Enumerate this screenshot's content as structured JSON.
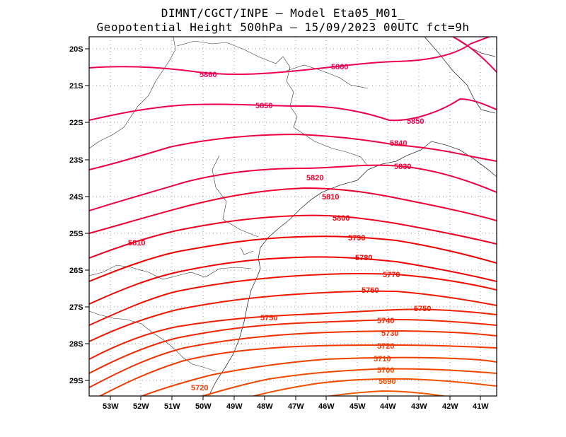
{
  "title": {
    "line1": "DIMNT/CGCT/INPE –  Model Eta05_M01_",
    "line2": "Geopotential Height 500hPa –  15/09/2023 00UTC fct=9h"
  },
  "lat_ticks": [
    "20S",
    "21S",
    "22S",
    "23S",
    "24S",
    "25S",
    "26S",
    "27S",
    "28S",
    "29S"
  ],
  "lon_ticks": [
    "53W",
    "52W",
    "51W",
    "50W",
    "49W",
    "48W",
    "47W",
    "46W",
    "45W",
    "44W",
    "43W",
    "42W",
    "41W"
  ],
  "contour_labels": [
    {
      "text": "5860",
      "color": "#ee0055"
    },
    {
      "text": "5860",
      "color": "#ee0055"
    },
    {
      "text": "5850",
      "color": "#ee0050"
    },
    {
      "text": "5850",
      "color": "#ee0050"
    },
    {
      "text": "5840",
      "color": "#ee0040"
    },
    {
      "text": "5830",
      "color": "#ee0035"
    },
    {
      "text": "5820",
      "color": "#ee0030"
    },
    {
      "text": "5810",
      "color": "#ee0020"
    },
    {
      "text": "5810",
      "color": "#ee0020"
    },
    {
      "text": "5800",
      "color": "#ee0010"
    },
    {
      "text": "5790",
      "color": "#f00000"
    },
    {
      "text": "5780",
      "color": "#f00000"
    },
    {
      "text": "5770",
      "color": "#f01000"
    },
    {
      "text": "5760",
      "color": "#f01500"
    },
    {
      "text": "5750",
      "color": "#f02000"
    },
    {
      "text": "5750",
      "color": "#f02000"
    },
    {
      "text": "5740",
      "color": "#f02800"
    },
    {
      "text": "5730",
      "color": "#f03000"
    },
    {
      "text": "5720",
      "color": "#f03800"
    },
    {
      "text": "5720",
      "color": "#f03800"
    },
    {
      "text": "5710",
      "color": "#f04000"
    },
    {
      "text": "5700",
      "color": "#f04800"
    },
    {
      "text": "5690",
      "color": "#f05000"
    }
  ]
}
